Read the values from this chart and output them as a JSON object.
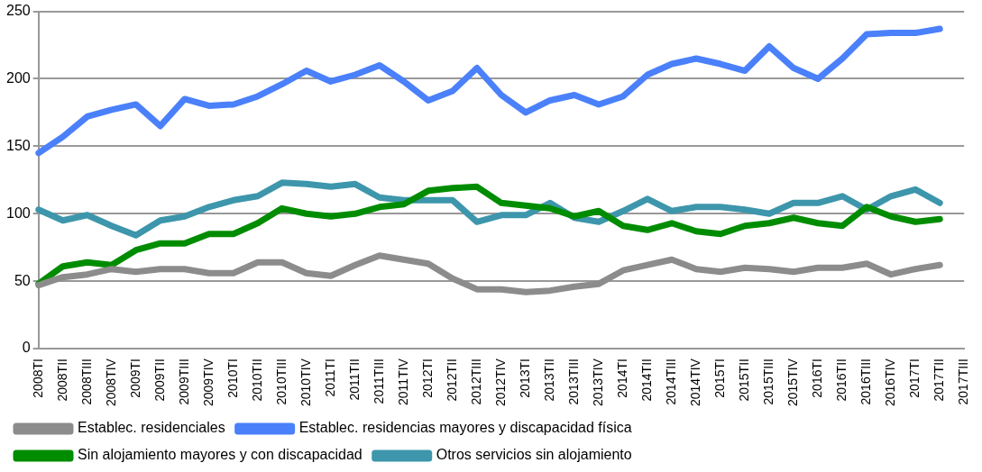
{
  "chart_data": {
    "type": "line",
    "categories": [
      "2008TI",
      "2008TII",
      "2008TIII",
      "2008TIV",
      "2009TI",
      "2009TII",
      "2009TIII",
      "2009TIV",
      "2010TI",
      "2010TII",
      "2010TIII",
      "2010TIV",
      "2011TI",
      "2011TII",
      "2011TIII",
      "2011TIV",
      "2012TI",
      "2012TII",
      "2012TIII",
      "2012TIV",
      "2013TI",
      "2013TII",
      "2013TIII",
      "2013TIV",
      "2014TI",
      "2014TII",
      "2014TIII",
      "2014TIV",
      "2015TI",
      "2015TII",
      "2015TIII",
      "2015TIV",
      "2016TI",
      "2016TII",
      "2016TIII",
      "2016TIV",
      "2017TI",
      "2017TII",
      "2017TIII"
    ],
    "series": [
      {
        "name": "Establec. residenciales",
        "color": "#8c8c8c",
        "values": [
          47,
          53,
          55,
          59,
          57,
          59,
          59,
          56,
          56,
          64,
          64,
          56,
          54,
          62,
          69,
          66,
          63,
          52,
          44,
          44,
          42,
          43,
          46,
          48,
          58,
          62,
          66,
          59,
          57,
          60,
          59,
          57,
          60,
          60,
          63,
          55,
          59,
          62,
          null
        ]
      },
      {
        "name": "Establec. residencias mayores y discapacidad física",
        "color": "#4a80fa",
        "values": [
          145,
          157,
          172,
          177,
          181,
          165,
          185,
          180,
          181,
          187,
          196,
          206,
          198,
          203,
          210,
          198,
          184,
          191,
          208,
          188,
          175,
          184,
          188,
          181,
          187,
          203,
          211,
          215,
          211,
          206,
          224,
          208,
          200,
          215,
          233,
          234,
          234,
          237,
          null
        ]
      },
      {
        "name": "Sin alojamiento mayores y con discapacidad",
        "color": "#008c00",
        "values": [
          48,
          61,
          64,
          62,
          73,
          78,
          78,
          85,
          85,
          93,
          104,
          100,
          98,
          100,
          105,
          107,
          117,
          119,
          120,
          108,
          106,
          104,
          98,
          102,
          91,
          88,
          93,
          87,
          85,
          91,
          93,
          97,
          93,
          91,
          105,
          98,
          94,
          96,
          null
        ]
      },
      {
        "name": "Otros servicios sin alojamiento",
        "color": "#3d96ab",
        "values": [
          103,
          95,
          99,
          91,
          84,
          95,
          98,
          105,
          110,
          113,
          123,
          122,
          120,
          122,
          112,
          110,
          110,
          110,
          94,
          99,
          99,
          108,
          97,
          94,
          102,
          111,
          102,
          105,
          105,
          103,
          100,
          108,
          108,
          113,
          103,
          113,
          118,
          108,
          null
        ]
      }
    ],
    "ylim": [
      0,
      250
    ],
    "yticks": [
      0,
      50,
      100,
      150,
      200,
      250
    ],
    "grid": "y",
    "legend": "bottom",
    "marker": "none",
    "line_style": "solid"
  }
}
